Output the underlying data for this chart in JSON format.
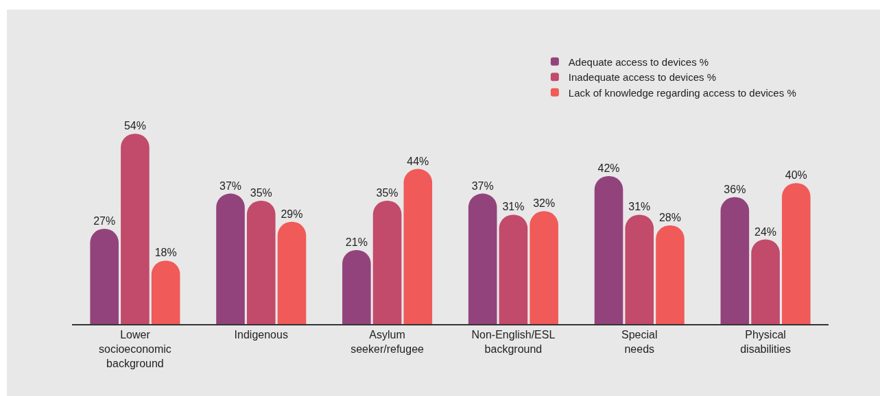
{
  "chart_data": {
    "type": "bar",
    "categories": [
      "Lower socioeconomic background",
      "Indigenous",
      "Asylum seeker/refugee",
      "Non-English/ESL background",
      "Special needs",
      "Physical disabilities"
    ],
    "series": [
      {
        "name": "Adequate access to devices %",
        "color": "#93437c",
        "values": [
          27,
          37,
          21,
          37,
          42,
          36
        ],
        "value_labels": [
          "27%",
          "37%",
          "21%",
          "37%",
          "42%",
          "36%"
        ]
      },
      {
        "name": "Inadequate access to devices %",
        "color": "#c24a6b",
        "values": [
          54,
          35,
          35,
          31,
          31,
          24
        ],
        "value_labels": [
          "54%",
          "35%",
          "35%",
          "31%",
          "31%",
          "24%"
        ]
      },
      {
        "name": "Lack of knowledge regarding access to devices %",
        "color": "#f05a58",
        "values": [
          18,
          29,
          44,
          32,
          28,
          40
        ],
        "value_labels": [
          "18%",
          "29%",
          "44%",
          "32%",
          "28%",
          "40%"
        ]
      }
    ],
    "legend": "top right",
    "grid": false
  }
}
